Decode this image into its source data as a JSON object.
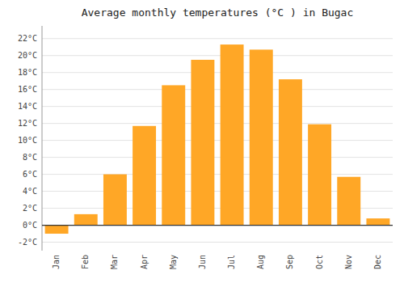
{
  "chart_data": {
    "type": "bar",
    "title": "Average monthly temperatures (°C ) in Bugac",
    "categories": [
      "Jan",
      "Feb",
      "Mar",
      "Apr",
      "May",
      "Jun",
      "Jul",
      "Aug",
      "Sep",
      "Oct",
      "Nov",
      "Dec"
    ],
    "values": [
      -1.0,
      1.3,
      6.0,
      11.7,
      16.5,
      19.5,
      21.3,
      20.7,
      17.2,
      11.9,
      5.7,
      0.8
    ],
    "color": "#FFA726",
    "ylim": [
      -3.0,
      23.5
    ],
    "yticks": [
      {
        "value": -2,
        "label": "-2°C"
      },
      {
        "value": 0,
        "label": "0°C"
      },
      {
        "value": 2,
        "label": "2°C"
      },
      {
        "value": 4,
        "label": "4°C"
      },
      {
        "value": 6,
        "label": "6°C"
      },
      {
        "value": 8,
        "label": "8°C"
      },
      {
        "value": 10,
        "label": "10°C"
      },
      {
        "value": 12,
        "label": "12°C"
      },
      {
        "value": 14,
        "label": "14°C"
      },
      {
        "value": 16,
        "label": "16°C"
      },
      {
        "value": 18,
        "label": "18°C"
      },
      {
        "value": 20,
        "label": "20°C"
      },
      {
        "value": 22,
        "label": "22°C"
      }
    ],
    "grid": true
  }
}
